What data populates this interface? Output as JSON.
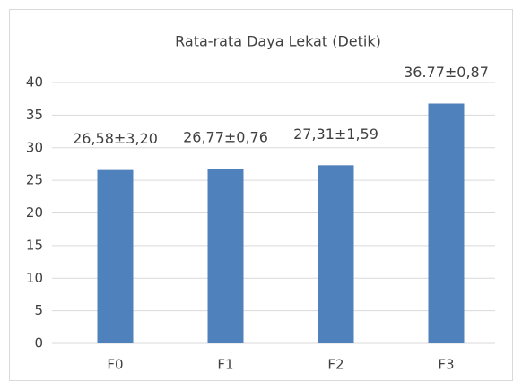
{
  "chart_data": {
    "type": "bar",
    "title": "Rata-rata Daya Lekat (Detik)",
    "categories": [
      "F0",
      "F1",
      "F2",
      "F3"
    ],
    "values": [
      26.58,
      26.77,
      27.31,
      36.77
    ],
    "value_labels": [
      "26,58±3,20",
      "26,77±0,76",
      "27,31±1,59",
      "36.77±0,87"
    ],
    "color": "#4f81bd",
    "ylim": [
      0,
      40
    ],
    "yticks": [
      0,
      5,
      10,
      15,
      20,
      25,
      30,
      35,
      40
    ],
    "grid": true
  }
}
